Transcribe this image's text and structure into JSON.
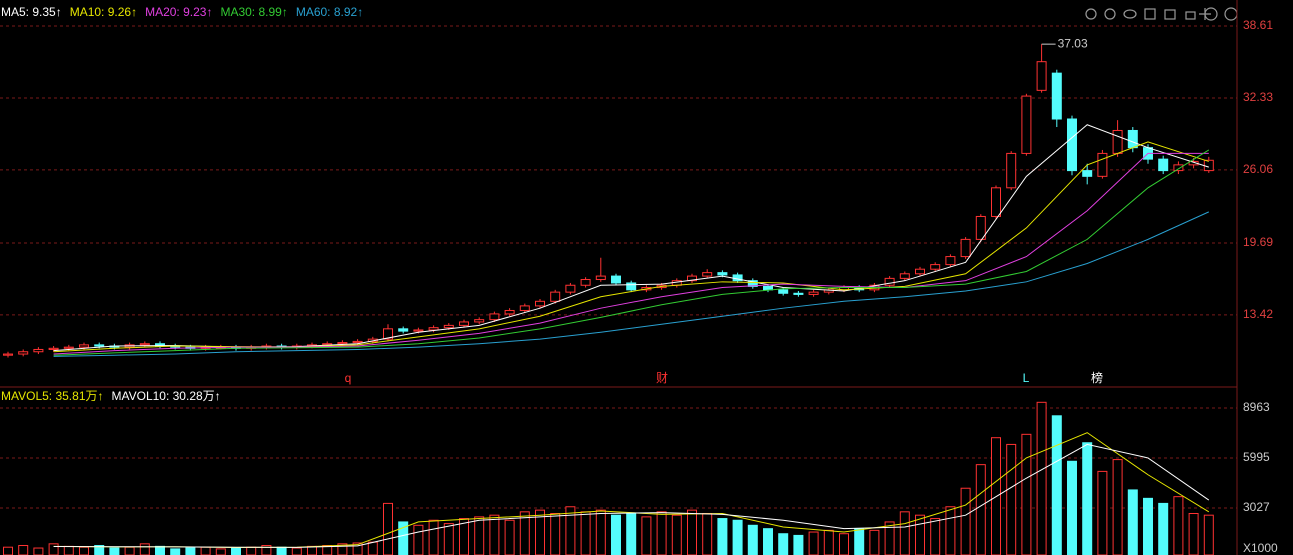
{
  "chart_data": [
    {
      "type": "candlestick",
      "legend": [
        "MA5: 9.35↑",
        "MA10: 9.26↑",
        "MA20: 9.23↑",
        "MA30: 8.99↑",
        "MA60: 8.92↑"
      ],
      "up_color": "#ff3232",
      "down_color": "#54fcfc",
      "ylim": [
        7.3,
        40.88
      ],
      "yticks": [
        38.61,
        32.33,
        26.06,
        19.69,
        13.42
      ],
      "grid": true,
      "peak_label": "37.03",
      "markers": [
        "q",
        "财",
        "L",
        "榜"
      ],
      "open": [
        9.9,
        10.0,
        10.2,
        10.4,
        10.5,
        10.6,
        10.8,
        10.7,
        10.6,
        10.8,
        10.9,
        10.7,
        10.6,
        10.5,
        10.6,
        10.6,
        10.5,
        10.6,
        10.7,
        10.6,
        10.7,
        10.8,
        10.9,
        11.0,
        11.1,
        11.3,
        12.2,
        12.0,
        12.1,
        12.3,
        12.5,
        12.8,
        13.0,
        13.5,
        13.8,
        14.2,
        14.6,
        15.4,
        16.0,
        16.5,
        16.8,
        16.2,
        15.6,
        15.8,
        16.0,
        16.4,
        16.8,
        17.1,
        16.9,
        16.4,
        15.9,
        15.6,
        15.3,
        15.2,
        15.4,
        15.6,
        15.8,
        15.6,
        16.0,
        16.6,
        17.0,
        17.4,
        17.8,
        18.5,
        20.0,
        22.0,
        24.5,
        27.5,
        33.0,
        34.5,
        30.5,
        26.0,
        25.5,
        27.5,
        29.5,
        28.0,
        27.0,
        26.0,
        26.5,
        26.0
      ],
      "high": [
        10.2,
        10.4,
        10.6,
        10.7,
        10.8,
        11.0,
        11.0,
        10.9,
        11.0,
        11.1,
        11.1,
        10.9,
        10.8,
        10.8,
        10.8,
        10.8,
        10.8,
        10.9,
        10.9,
        10.9,
        11.0,
        11.1,
        11.2,
        11.3,
        11.5,
        12.6,
        12.4,
        12.3,
        12.5,
        12.7,
        13.0,
        13.2,
        13.7,
        14.0,
        14.4,
        14.8,
        15.6,
        16.2,
        16.7,
        18.4,
        17.0,
        16.4,
        16.0,
        16.2,
        16.6,
        17.0,
        17.4,
        17.3,
        17.1,
        16.6,
        16.1,
        15.8,
        15.5,
        15.6,
        15.8,
        16.0,
        16.0,
        16.2,
        16.8,
        17.2,
        17.6,
        18.0,
        18.7,
        20.2,
        22.2,
        24.7,
        27.7,
        32.7,
        37.03,
        34.8,
        30.8,
        26.6,
        27.8,
        30.4,
        29.8,
        28.3,
        27.3,
        26.8,
        27.1,
        27.2
      ],
      "low": [
        9.7,
        9.8,
        10.0,
        10.2,
        10.3,
        10.4,
        10.5,
        10.4,
        10.4,
        10.6,
        10.5,
        10.4,
        10.3,
        10.3,
        10.4,
        10.3,
        10.3,
        10.4,
        10.4,
        10.4,
        10.5,
        10.6,
        10.7,
        10.8,
        10.9,
        11.1,
        11.8,
        11.8,
        11.9,
        12.1,
        12.3,
        12.6,
        12.8,
        13.3,
        13.6,
        14.0,
        14.4,
        15.2,
        15.8,
        16.3,
        16.0,
        15.4,
        15.4,
        15.6,
        15.8,
        16.2,
        16.6,
        16.7,
        16.2,
        15.7,
        15.4,
        15.1,
        15.0,
        15.0,
        15.2,
        15.4,
        15.4,
        15.4,
        15.8,
        16.4,
        16.8,
        17.2,
        17.6,
        18.3,
        19.8,
        21.8,
        24.3,
        27.3,
        32.8,
        29.8,
        25.6,
        24.8,
        25.3,
        27.2,
        27.6,
        26.6,
        25.7,
        25.7,
        26.2,
        25.8
      ],
      "close": [
        10.0,
        10.2,
        10.4,
        10.5,
        10.6,
        10.8,
        10.7,
        10.6,
        10.8,
        10.9,
        10.7,
        10.6,
        10.5,
        10.6,
        10.6,
        10.5,
        10.6,
        10.7,
        10.6,
        10.7,
        10.8,
        10.9,
        11.0,
        11.1,
        11.3,
        12.2,
        12.0,
        12.1,
        12.3,
        12.5,
        12.8,
        13.0,
        13.5,
        13.8,
        14.2,
        14.6,
        15.4,
        16.0,
        16.5,
        16.8,
        16.2,
        15.6,
        15.8,
        16.0,
        16.4,
        16.8,
        17.1,
        16.9,
        16.4,
        15.9,
        15.6,
        15.3,
        15.2,
        15.4,
        15.6,
        15.8,
        15.6,
        16.0,
        16.6,
        17.0,
        17.4,
        17.8,
        18.5,
        20.0,
        22.0,
        24.5,
        27.5,
        32.5,
        35.5,
        30.5,
        26.0,
        25.5,
        27.5,
        29.5,
        28.0,
        27.0,
        26.0,
        26.5,
        26.8,
        26.9
      ],
      "series": [
        {
          "name": "MA5",
          "color": "#ffffff",
          "values": [
            10.3,
            10.7,
            10.75,
            10.6,
            10.65,
            10.9,
            11.9,
            12.5,
            14.0,
            16.0,
            16.1,
            16.8,
            15.8,
            15.5,
            16.4,
            18.0,
            25.5,
            30.0,
            28.0,
            26.3
          ]
        },
        {
          "name": "MA10",
          "color": "#e6e600",
          "values": [
            10.2,
            10.5,
            10.7,
            10.65,
            10.6,
            10.8,
            11.5,
            12.2,
            13.3,
            15.0,
            15.9,
            16.3,
            16.2,
            15.6,
            15.9,
            17.0,
            21.0,
            26.5,
            28.5,
            26.8
          ]
        },
        {
          "name": "MA20",
          "color": "#e040e0",
          "values": [
            10.0,
            10.3,
            10.5,
            10.6,
            10.6,
            10.7,
            11.2,
            11.8,
            12.7,
            14.0,
            15.0,
            15.8,
            16.1,
            15.9,
            15.8,
            16.4,
            18.5,
            22.5,
            27.5,
            27.5
          ]
        },
        {
          "name": "MA30",
          "color": "#33cc33",
          "values": [
            9.9,
            10.1,
            10.3,
            10.5,
            10.55,
            10.6,
            10.9,
            11.4,
            12.2,
            13.2,
            14.3,
            15.2,
            15.7,
            15.8,
            15.8,
            16.1,
            17.2,
            20.0,
            24.5,
            27.8
          ]
        },
        {
          "name": "MA60",
          "color": "#29a0d0",
          "values": [
            9.8,
            9.9,
            10.0,
            10.2,
            10.3,
            10.4,
            10.6,
            10.9,
            11.3,
            11.9,
            12.6,
            13.3,
            14.0,
            14.6,
            15.0,
            15.5,
            16.3,
            17.9,
            20.0,
            22.4
          ]
        }
      ]
    },
    {
      "type": "bar",
      "legend": [
        "MAVOL5: 35.81万↑",
        "MAVOL10: 30.28万↑"
      ],
      "ylim": [
        237,
        10031
      ],
      "yticks": [
        8963,
        5995,
        3027
      ],
      "grid": true,
      "unit_label": "X1000",
      "values": [
        700,
        800,
        650,
        900,
        750,
        700,
        800,
        650,
        700,
        900,
        750,
        600,
        650,
        700,
        600,
        650,
        700,
        800,
        700,
        650,
        750,
        800,
        900,
        950,
        1000,
        3300,
        2200,
        2000,
        2300,
        2100,
        2400,
        2500,
        2600,
        2300,
        2800,
        2900,
        2700,
        3100,
        2800,
        2900,
        2600,
        2700,
        2500,
        2800,
        2600,
        2900,
        2700,
        2400,
        2300,
        2000,
        1800,
        1500,
        1400,
        1600,
        1700,
        1500,
        1800,
        1700,
        2200,
        2800,
        2600,
        2400,
        3100,
        4200,
        5600,
        7200,
        6800,
        7400,
        9300,
        8500,
        5800,
        6900,
        5200,
        5900,
        4100,
        3600,
        3300,
        3700,
        2700,
        2600
      ],
      "series": [
        {
          "name": "MAVOL5",
          "color": "#e6e600",
          "values": [
            750,
            720,
            730,
            680,
            700,
            850,
            2200,
            2400,
            2600,
            2850,
            2650,
            2700,
            1900,
            1600,
            2100,
            3200,
            6000,
            7500,
            5000,
            2800
          ]
        },
        {
          "name": "MAVOL10",
          "color": "#ffffff",
          "values": [
            740,
            730,
            720,
            700,
            690,
            780,
            1600,
            2300,
            2500,
            2700,
            2750,
            2650,
            2300,
            1800,
            1900,
            2600,
            4800,
            6800,
            6000,
            3500
          ]
        }
      ]
    }
  ]
}
